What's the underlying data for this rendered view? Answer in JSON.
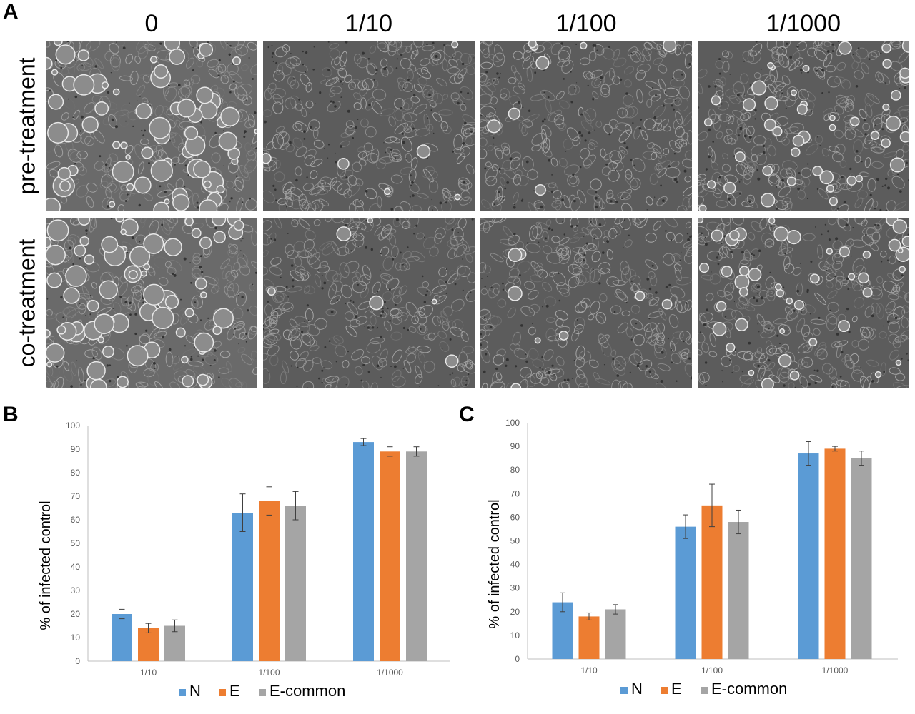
{
  "figure": {
    "panel_letters": {
      "a": "A",
      "b": "B",
      "c": "C"
    },
    "columns": [
      "0",
      "1/10",
      "1/100",
      "1/1000"
    ],
    "rows": [
      "pre-treatment",
      "co-treatment"
    ]
  },
  "colors": {
    "N": "#5B9BD5",
    "E": "#ED7D31",
    "E-common": "#A5A5A5"
  },
  "chart_data": [
    {
      "type": "bar",
      "panel": "B",
      "categories": [
        "1/10",
        "1/100",
        "1/1000"
      ],
      "series": [
        {
          "name": "N",
          "values": [
            20,
            63,
            93
          ],
          "errors": [
            2,
            8,
            1.5
          ]
        },
        {
          "name": "E",
          "values": [
            14,
            68,
            89
          ],
          "errors": [
            2,
            6,
            2
          ]
        },
        {
          "name": "E-common",
          "values": [
            15,
            66,
            89
          ],
          "errors": [
            2.5,
            6,
            2
          ]
        }
      ],
      "ylabel": "% of infected control",
      "ylim": [
        0,
        100
      ],
      "yticks": [
        0,
        10,
        20,
        30,
        40,
        50,
        60,
        70,
        80,
        90,
        100
      ],
      "legend": "bottom",
      "grid": false
    },
    {
      "type": "bar",
      "panel": "C",
      "categories": [
        "1/10",
        "1/100",
        "1/1000"
      ],
      "series": [
        {
          "name": "N",
          "values": [
            24,
            56,
            87
          ],
          "errors": [
            4,
            5,
            5
          ]
        },
        {
          "name": "E",
          "values": [
            18,
            65,
            89
          ],
          "errors": [
            1.5,
            9,
            1
          ]
        },
        {
          "name": "E-common",
          "values": [
            21,
            58,
            85
          ],
          "errors": [
            2,
            5,
            3
          ]
        }
      ],
      "ylabel": "% of infected control",
      "ylim": [
        0,
        100
      ],
      "yticks": [
        0,
        10,
        20,
        30,
        40,
        50,
        60,
        70,
        80,
        90,
        100
      ],
      "legend": "bottom",
      "grid": false
    }
  ]
}
